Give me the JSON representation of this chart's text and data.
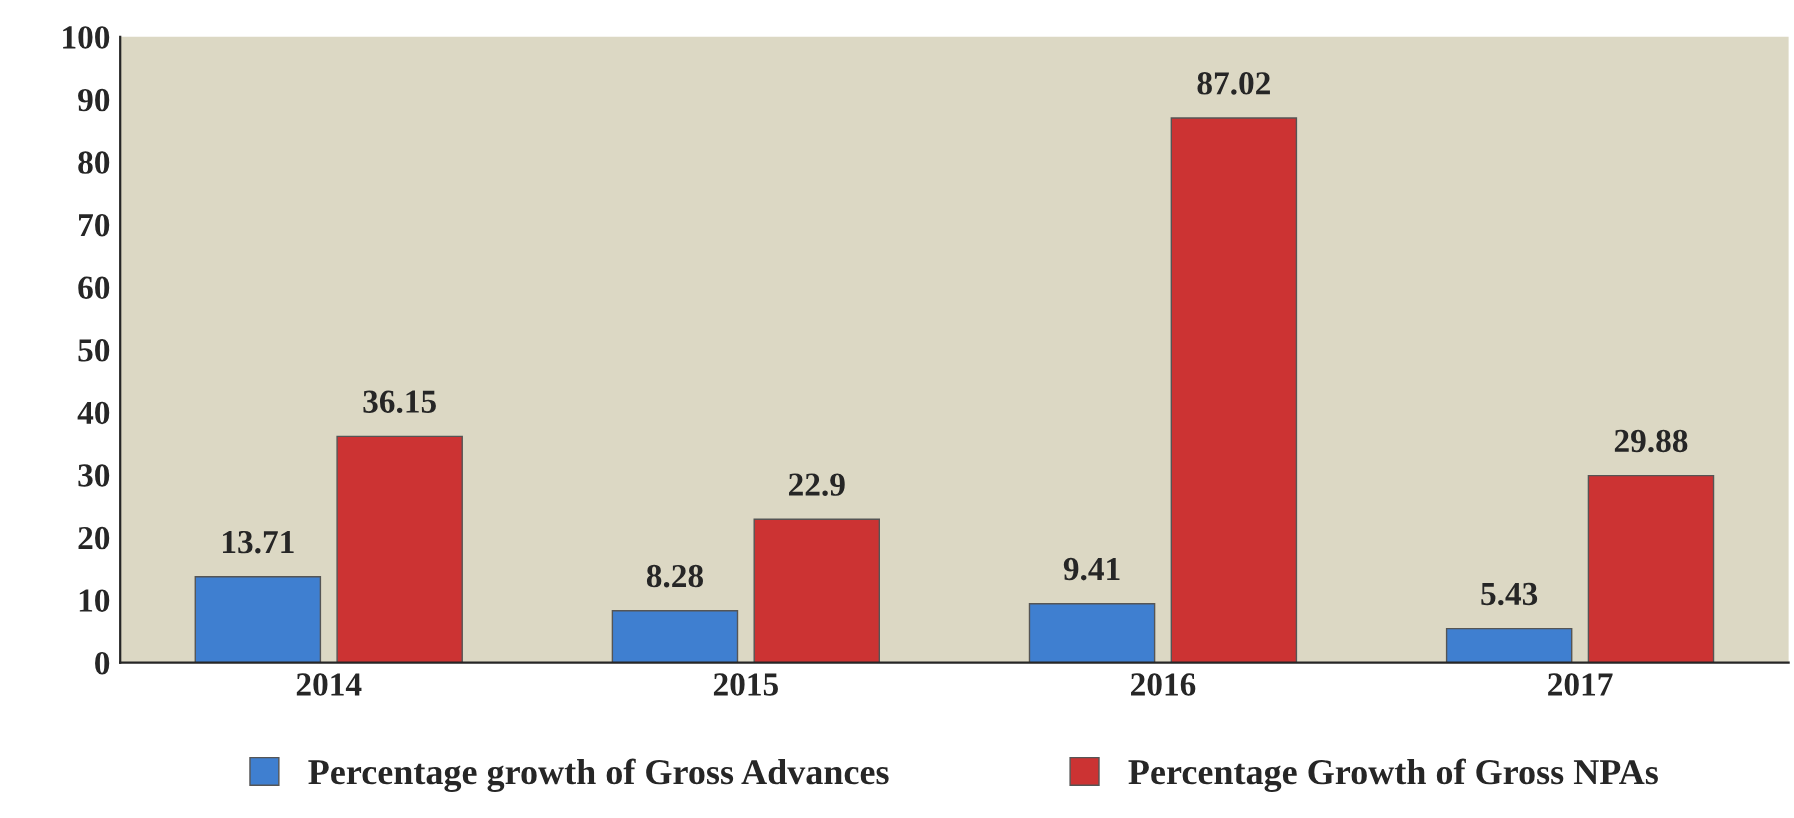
{
  "chart_data": {
    "type": "bar",
    "categories": [
      "2014",
      "2015",
      "2016",
      "2017"
    ],
    "series": [
      {
        "name": "Percentage growth of Gross Advances",
        "color": "#3f7fd0",
        "values": [
          13.71,
          8.28,
          9.41,
          5.43
        ]
      },
      {
        "name": "Percentage Growth of Gross NPAs",
        "color": "#cc3333",
        "values": [
          36.15,
          22.9,
          87.02,
          29.88
        ]
      }
    ],
    "ylim": [
      0,
      100
    ],
    "yticks": [
      0,
      10,
      20,
      30,
      40,
      50,
      60,
      70,
      80,
      90,
      100
    ],
    "data_labels": true,
    "legend": "bottom",
    "grid": false
  }
}
